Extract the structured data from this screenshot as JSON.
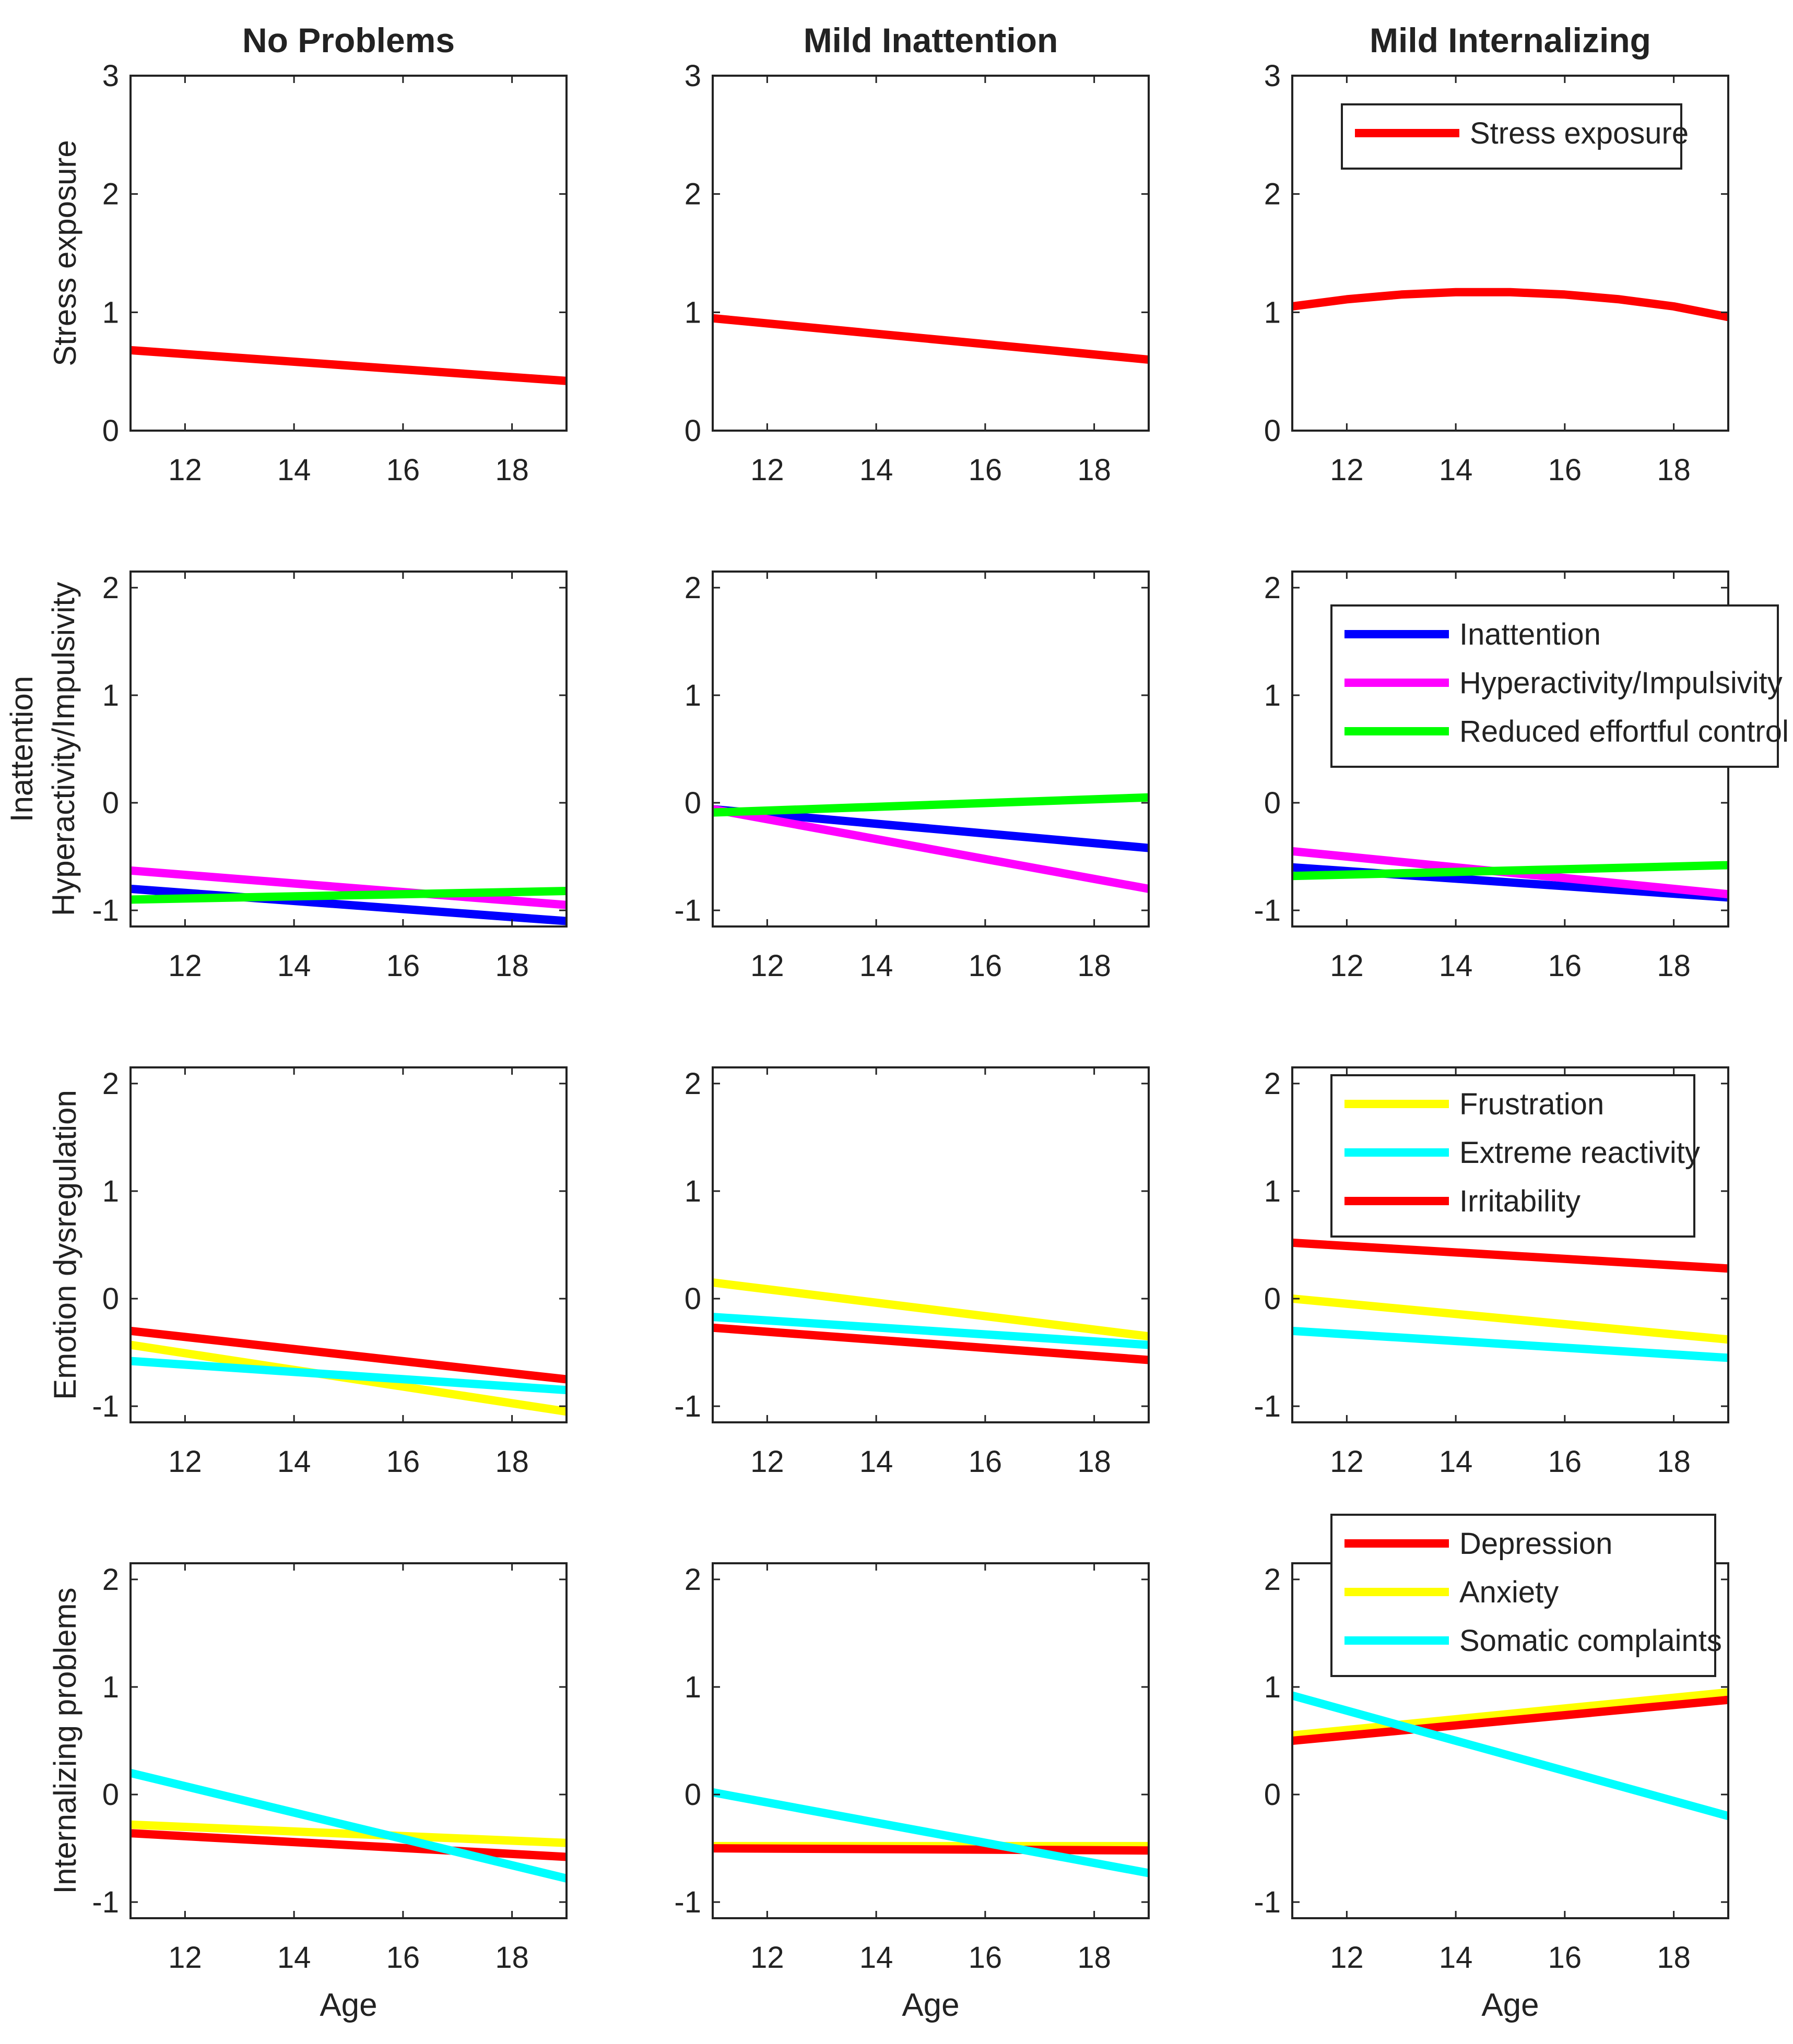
{
  "chart_data": {
    "type": "line",
    "column_titles": [
      "No Problems",
      "Mild Inattention",
      "Mild Internalizing"
    ],
    "xlabel": "Age",
    "xlim": [
      11,
      19
    ],
    "xticks": [
      12,
      14,
      16,
      18
    ],
    "colors": {
      "red": "#ff0000",
      "blue": "#0000ff",
      "magenta": "#ff00ff",
      "green": "#00ff00",
      "yellow": "#ffff00",
      "cyan": "#00ffff"
    },
    "rows": [
      {
        "ylabel": [
          "Stress exposure"
        ],
        "ylim": [
          0,
          3
        ],
        "yticks": [
          0,
          1,
          2,
          3
        ],
        "legend": [
          {
            "name": "Stress exposure",
            "color": "red"
          }
        ],
        "panels": [
          {
            "series": [
              {
                "name": "Stress exposure",
                "color": "red",
                "x": [
                  11,
                  19
                ],
                "y": [
                  0.68,
                  0.42
                ]
              }
            ]
          },
          {
            "series": [
              {
                "name": "Stress exposure",
                "color": "red",
                "x": [
                  11,
                  19
                ],
                "y": [
                  0.95,
                  0.6
                ]
              }
            ]
          },
          {
            "series": [
              {
                "name": "Stress exposure",
                "color": "red",
                "x": [
                  11,
                  12,
                  13,
                  14,
                  15,
                  16,
                  17,
                  18,
                  19
                ],
                "y": [
                  1.05,
                  1.11,
                  1.15,
                  1.17,
                  1.17,
                  1.15,
                  1.11,
                  1.05,
                  0.96
                ]
              }
            ]
          }
        ]
      },
      {
        "ylabel": [
          "Inattention",
          "Hyperactivity/Impulsivity"
        ],
        "ylim": [
          -1.15,
          2.15
        ],
        "yticks": [
          -1,
          0,
          1,
          2
        ],
        "legend": [
          {
            "name": "Inattention",
            "color": "blue"
          },
          {
            "name": "Hyperactivity/Impulsivity",
            "color": "magenta"
          },
          {
            "name": "Reduced effortful control",
            "color": "green"
          }
        ],
        "panels": [
          {
            "series": [
              {
                "name": "Inattention",
                "color": "blue",
                "x": [
                  11,
                  19
                ],
                "y": [
                  -0.8,
                  -1.1
                ]
              },
              {
                "name": "Hyperactivity/Impulsivity",
                "color": "magenta",
                "x": [
                  11,
                  19
                ],
                "y": [
                  -0.63,
                  -0.95
                ]
              },
              {
                "name": "Reduced effortful control",
                "color": "green",
                "x": [
                  11,
                  19
                ],
                "y": [
                  -0.9,
                  -0.82
                ]
              }
            ]
          },
          {
            "series": [
              {
                "name": "Inattention",
                "color": "blue",
                "x": [
                  11,
                  19
                ],
                "y": [
                  -0.06,
                  -0.42
                ]
              },
              {
                "name": "Hyperactivity/Impulsivity",
                "color": "magenta",
                "x": [
                  11,
                  19
                ],
                "y": [
                  -0.06,
                  -0.8
                ]
              },
              {
                "name": "Reduced effortful control",
                "color": "green",
                "x": [
                  11,
                  19
                ],
                "y": [
                  -0.09,
                  0.05
                ]
              }
            ]
          },
          {
            "series": [
              {
                "name": "Inattention",
                "color": "blue",
                "x": [
                  11,
                  19
                ],
                "y": [
                  -0.6,
                  -0.88
                ]
              },
              {
                "name": "Hyperactivity/Impulsivity",
                "color": "magenta",
                "x": [
                  11,
                  19
                ],
                "y": [
                  -0.45,
                  -0.85
                ]
              },
              {
                "name": "Reduced effortful control",
                "color": "green",
                "x": [
                  11,
                  19
                ],
                "y": [
                  -0.68,
                  -0.58
                ]
              }
            ]
          }
        ]
      },
      {
        "ylabel": [
          "Emotion dysregulation"
        ],
        "ylim": [
          -1.15,
          2.15
        ],
        "yticks": [
          -1,
          0,
          1,
          2
        ],
        "legend": [
          {
            "name": "Frustration",
            "color": "yellow"
          },
          {
            "name": "Extreme reactivity",
            "color": "cyan"
          },
          {
            "name": "Irritability",
            "color": "red"
          }
        ],
        "panels": [
          {
            "series": [
              {
                "name": "Frustration",
                "color": "yellow",
                "x": [
                  11,
                  19
                ],
                "y": [
                  -0.43,
                  -1.05
                ]
              },
              {
                "name": "Extreme reactivity",
                "color": "cyan",
                "x": [
                  11,
                  19
                ],
                "y": [
                  -0.58,
                  -0.85
                ]
              },
              {
                "name": "Irritability",
                "color": "red",
                "x": [
                  11,
                  19
                ],
                "y": [
                  -0.3,
                  -0.75
                ]
              }
            ]
          },
          {
            "series": [
              {
                "name": "Frustration",
                "color": "yellow",
                "x": [
                  11,
                  19
                ],
                "y": [
                  0.15,
                  -0.35
                ]
              },
              {
                "name": "Extreme reactivity",
                "color": "cyan",
                "x": [
                  11,
                  19
                ],
                "y": [
                  -0.17,
                  -0.43
                ]
              },
              {
                "name": "Irritability",
                "color": "red",
                "x": [
                  11,
                  19
                ],
                "y": [
                  -0.27,
                  -0.57
                ]
              }
            ]
          },
          {
            "series": [
              {
                "name": "Frustration",
                "color": "yellow",
                "x": [
                  11,
                  19
                ],
                "y": [
                  0.0,
                  -0.38
                ]
              },
              {
                "name": "Extreme reactivity",
                "color": "cyan",
                "x": [
                  11,
                  19
                ],
                "y": [
                  -0.3,
                  -0.55
                ]
              },
              {
                "name": "Irritability",
                "color": "red",
                "x": [
                  11,
                  19
                ],
                "y": [
                  0.52,
                  0.28
                ]
              }
            ]
          }
        ]
      },
      {
        "ylabel": [
          "Internalizing problems"
        ],
        "ylim": [
          -1.15,
          2.15
        ],
        "yticks": [
          -1,
          0,
          1,
          2
        ],
        "legend": [
          {
            "name": "Depression",
            "color": "red"
          },
          {
            "name": "Anxiety",
            "color": "yellow"
          },
          {
            "name": "Somatic complaints",
            "color": "cyan"
          }
        ],
        "panels": [
          {
            "series": [
              {
                "name": "Anxiety",
                "color": "yellow",
                "x": [
                  11,
                  19
                ],
                "y": [
                  -0.28,
                  -0.45
                ]
              },
              {
                "name": "Depression",
                "color": "red",
                "x": [
                  11,
                  19
                ],
                "y": [
                  -0.36,
                  -0.58
                ]
              },
              {
                "name": "Somatic complaints",
                "color": "cyan",
                "x": [
                  11,
                  19
                ],
                "y": [
                  0.2,
                  -0.78
                ]
              }
            ]
          },
          {
            "series": [
              {
                "name": "Anxiety",
                "color": "yellow",
                "x": [
                  11,
                  19
                ],
                "y": [
                  -0.48,
                  -0.48
                ]
              },
              {
                "name": "Depression",
                "color": "red",
                "x": [
                  11,
                  19
                ],
                "y": [
                  -0.5,
                  -0.52
                ]
              },
              {
                "name": "Somatic complaints",
                "color": "cyan",
                "x": [
                  11,
                  19
                ],
                "y": [
                  0.02,
                  -0.73
                ]
              }
            ]
          },
          {
            "series": [
              {
                "name": "Anxiety",
                "color": "yellow",
                "x": [
                  11,
                  19
                ],
                "y": [
                  0.55,
                  0.95
                ]
              },
              {
                "name": "Depression",
                "color": "red",
                "x": [
                  11,
                  19
                ],
                "y": [
                  0.5,
                  0.88
                ]
              },
              {
                "name": "Somatic complaints",
                "color": "cyan",
                "x": [
                  11,
                  19
                ],
                "y": [
                  0.92,
                  -0.2
                ]
              }
            ]
          }
        ]
      }
    ]
  }
}
